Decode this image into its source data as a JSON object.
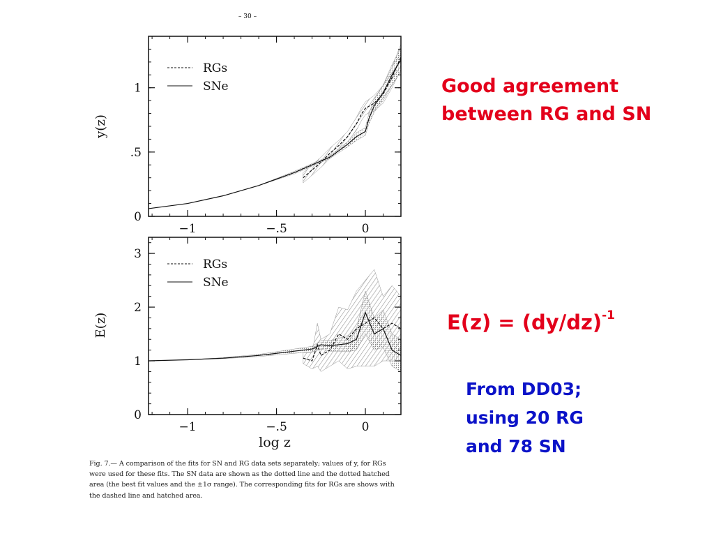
{
  "page_header": "– 30 –",
  "slide": {
    "agreement_line1": "Good agreement",
    "agreement_line2": "between RG and SN",
    "formula_main": "E(z) = (dy/dz)",
    "formula_exp": "-1",
    "source_line1": "From DD03;",
    "source_line2": "using 20 RG",
    "source_line3": "and 78 SN"
  },
  "caption": "Fig. 7.— A comparison of the fits for SN and RG data sets separately; values of y, for RGs were used for these fits. The SN data are shown as the dotted line and the dotted hatched area (the best fit values and the ±1σ range). The corresponding fits for RGs are shows with the dashed line and hatched area.",
  "colors": {
    "slide_red": "#e3001b",
    "slide_blue": "#0b12c8",
    "ink": "#111111",
    "band": "#9a9a9a"
  },
  "chart_data": [
    {
      "type": "line",
      "xlabel": "",
      "ylabel": "y(z)",
      "xlim": [
        -1.22,
        0.2
      ],
      "ylim": [
        0,
        1.4
      ],
      "xticks": [
        -1,
        -0.5,
        0
      ],
      "xtick_labels": [
        "−1",
        "−.5",
        "0"
      ],
      "yticks": [
        0,
        0.5,
        1
      ],
      "ytick_labels": [
        "0",
        ".5",
        "1"
      ],
      "legend": [
        "RGs",
        "SNe"
      ],
      "legend_position": "top-left",
      "series": [
        {
          "name": "RGs",
          "style": "dashed",
          "x": [
            -0.35,
            -0.3,
            -0.25,
            -0.2,
            -0.15,
            -0.1,
            -0.05,
            -0.02,
            0.0,
            0.05,
            0.1,
            0.15,
            0.2
          ],
          "y": [
            0.3,
            0.36,
            0.42,
            0.49,
            0.55,
            0.62,
            0.72,
            0.8,
            0.84,
            0.88,
            0.95,
            1.08,
            1.24
          ],
          "band": [
            0.04,
            0.04,
            0.04,
            0.04,
            0.04,
            0.04,
            0.05,
            0.05,
            0.05,
            0.06,
            0.07,
            0.08,
            0.1
          ]
        },
        {
          "name": "SNe",
          "style": "solid",
          "x": [
            -1.22,
            -1.0,
            -0.8,
            -0.6,
            -0.4,
            -0.2,
            -0.1,
            -0.05,
            0.0,
            0.02,
            0.05,
            0.1,
            0.15,
            0.2
          ],
          "y": [
            0.06,
            0.1,
            0.16,
            0.24,
            0.34,
            0.46,
            0.56,
            0.62,
            0.66,
            0.76,
            0.86,
            0.96,
            1.1,
            1.22
          ],
          "band": [
            0.0,
            0.0,
            0.0,
            0.0,
            0.01,
            0.01,
            0.02,
            0.03,
            0.03,
            0.04,
            0.05,
            0.06,
            0.08,
            0.09
          ]
        }
      ]
    },
    {
      "type": "line",
      "xlabel": "log z",
      "ylabel": "E(z)",
      "xlim": [
        -1.22,
        0.2
      ],
      "ylim": [
        0,
        3.3
      ],
      "xticks": [
        -1,
        -0.5,
        0
      ],
      "xtick_labels": [
        "−1",
        "−.5",
        "0"
      ],
      "yticks": [
        0,
        1,
        2,
        3
      ],
      "ytick_labels": [
        "0",
        "1",
        "2",
        "3"
      ],
      "legend": [
        "RGs",
        "SNe"
      ],
      "legend_position": "top-left",
      "series": [
        {
          "name": "RGs",
          "style": "dashed",
          "x": [
            -0.35,
            -0.3,
            -0.27,
            -0.25,
            -0.2,
            -0.15,
            -0.1,
            -0.05,
            0.0,
            0.05,
            0.1,
            0.15,
            0.2
          ],
          "y": [
            1.05,
            1.0,
            1.3,
            1.1,
            1.2,
            1.5,
            1.4,
            1.6,
            1.7,
            1.8,
            1.6,
            1.7,
            1.6
          ],
          "band": [
            0.1,
            0.15,
            0.4,
            0.3,
            0.3,
            0.5,
            0.55,
            0.7,
            0.8,
            0.9,
            0.6,
            0.7,
            0.6
          ]
        },
        {
          "name": "SNe",
          "style": "solid",
          "x": [
            -1.22,
            -1.0,
            -0.8,
            -0.6,
            -0.4,
            -0.3,
            -0.25,
            -0.2,
            -0.15,
            -0.1,
            -0.05,
            0.0,
            0.05,
            0.1,
            0.15,
            0.2
          ],
          "y": [
            1.0,
            1.02,
            1.05,
            1.1,
            1.18,
            1.22,
            1.3,
            1.28,
            1.3,
            1.32,
            1.4,
            1.9,
            1.5,
            1.6,
            1.2,
            1.1
          ],
          "band": [
            0.0,
            0.0,
            0.01,
            0.02,
            0.04,
            0.05,
            0.08,
            0.1,
            0.12,
            0.15,
            0.2,
            0.4,
            0.3,
            0.35,
            0.3,
            0.3
          ]
        }
      ]
    }
  ]
}
